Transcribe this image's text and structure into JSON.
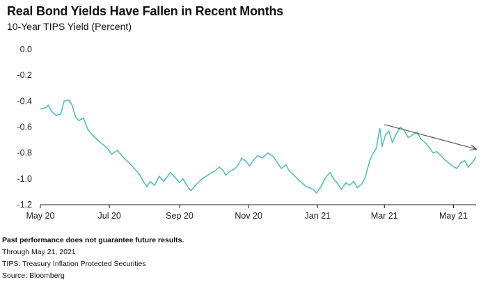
{
  "header": {
    "title": "Real Bond Yields Have Fallen in Recent Months",
    "subtitle": "10-Year TIPS Yield (Percent)"
  },
  "footnotes": {
    "disclaimer": "Past performance does not guarantee future results.",
    "through": "Through May 21, 2021",
    "tips": "TIPS: Treasury Inflation Protected Securities",
    "source": "Source: Bloomberg"
  },
  "colors": {
    "line": "#4fc4b0",
    "axis": "#222222",
    "arrow": "#555555"
  },
  "chart_data": {
    "type": "line",
    "title": "Real Bond Yields Have Fallen in Recent Months",
    "subtitle": "10-Year TIPS Yield (Percent)",
    "xlabel": "",
    "ylabel": "",
    "ylim": [
      -1.2,
      0.0
    ],
    "yticks": [
      "0.0",
      "-0.2",
      "-0.4",
      "-0.6",
      "-0.8",
      "-1.0",
      "-1.2"
    ],
    "xlim": [
      "2020-05-01",
      "2021-05-21"
    ],
    "xticks": [
      {
        "label": "May 20",
        "date": "2020-05-01"
      },
      {
        "label": "Jul 20",
        "date": "2020-07-01"
      },
      {
        "label": "Sep 20",
        "date": "2020-09-01"
      },
      {
        "label": "Nov 20",
        "date": "2020-11-01"
      },
      {
        "label": "Jan 21",
        "date": "2021-01-01"
      },
      {
        "label": "Mar 21",
        "date": "2021-03-01"
      },
      {
        "label": "May 21",
        "date": "2021-05-01"
      }
    ],
    "grid": false,
    "legend": "none",
    "series": [
      {
        "points": [
          [
            "2020-05-01",
            -0.46
          ],
          [
            "2020-05-06",
            -0.45
          ],
          [
            "2020-05-08",
            -0.43
          ],
          [
            "2020-05-11",
            -0.48
          ],
          [
            "2020-05-15",
            -0.51
          ],
          [
            "2020-05-19",
            -0.5
          ],
          [
            "2020-05-22",
            -0.4
          ],
          [
            "2020-05-26",
            -0.39
          ],
          [
            "2020-05-29",
            -0.43
          ],
          [
            "2020-06-01",
            -0.52
          ],
          [
            "2020-06-04",
            -0.55
          ],
          [
            "2020-06-08",
            -0.53
          ],
          [
            "2020-06-12",
            -0.62
          ],
          [
            "2020-06-17",
            -0.67
          ],
          [
            "2020-06-23",
            -0.72
          ],
          [
            "2020-06-29",
            -0.76
          ],
          [
            "2020-07-03",
            -0.81
          ],
          [
            "2020-07-08",
            -0.78
          ],
          [
            "2020-07-14",
            -0.84
          ],
          [
            "2020-07-20",
            -0.89
          ],
          [
            "2020-07-27",
            -0.96
          ],
          [
            "2020-07-31",
            -1.02
          ],
          [
            "2020-08-03",
            -1.06
          ],
          [
            "2020-08-06",
            -1.02
          ],
          [
            "2020-08-10",
            -1.05
          ],
          [
            "2020-08-14",
            -0.98
          ],
          [
            "2020-08-18",
            -1.02
          ],
          [
            "2020-08-24",
            -0.95
          ],
          [
            "2020-08-28",
            -0.99
          ],
          [
            "2020-09-01",
            -1.03
          ],
          [
            "2020-09-04",
            -1.0
          ],
          [
            "2020-09-08",
            -1.06
          ],
          [
            "2020-09-11",
            -1.09
          ],
          [
            "2020-09-15",
            -1.05
          ],
          [
            "2020-09-21",
            -1.0
          ],
          [
            "2020-09-28",
            -0.96
          ],
          [
            "2020-10-02",
            -0.94
          ],
          [
            "2020-10-06",
            -0.91
          ],
          [
            "2020-10-09",
            -0.93
          ],
          [
            "2020-10-12",
            -0.97
          ],
          [
            "2020-10-16",
            -0.94
          ],
          [
            "2020-10-20",
            -0.92
          ],
          [
            "2020-10-23",
            -0.89
          ],
          [
            "2020-10-26",
            -0.84
          ],
          [
            "2020-10-29",
            -0.86
          ],
          [
            "2020-11-02",
            -0.9
          ],
          [
            "2020-11-05",
            -0.86
          ],
          [
            "2020-11-09",
            -0.82
          ],
          [
            "2020-11-13",
            -0.84
          ],
          [
            "2020-11-18",
            -0.8
          ],
          [
            "2020-11-23",
            -0.83
          ],
          [
            "2020-11-30",
            -0.92
          ],
          [
            "2020-12-04",
            -0.89
          ],
          [
            "2020-12-07",
            -0.94
          ],
          [
            "2020-12-11",
            -0.97
          ],
          [
            "2020-12-14",
            -1.0
          ],
          [
            "2020-12-18",
            -1.03
          ],
          [
            "2020-12-22",
            -1.06
          ],
          [
            "2020-12-28",
            -1.08
          ],
          [
            "2020-12-31",
            -1.11
          ],
          [
            "2021-01-04",
            -1.06
          ],
          [
            "2021-01-08",
            -0.99
          ],
          [
            "2021-01-12",
            -0.95
          ],
          [
            "2021-01-15",
            -1.0
          ],
          [
            "2021-01-19",
            -1.04
          ],
          [
            "2021-01-22",
            -1.08
          ],
          [
            "2021-01-26",
            -1.03
          ],
          [
            "2021-01-29",
            -1.05
          ],
          [
            "2021-02-02",
            -1.02
          ],
          [
            "2021-02-05",
            -1.07
          ],
          [
            "2021-02-09",
            -1.04
          ],
          [
            "2021-02-12",
            -0.99
          ],
          [
            "2021-02-16",
            -0.86
          ],
          [
            "2021-02-18",
            -0.82
          ],
          [
            "2021-02-22",
            -0.76
          ],
          [
            "2021-02-24",
            -0.65
          ],
          [
            "2021-02-25",
            -0.61
          ],
          [
            "2021-02-27",
            -0.75
          ],
          [
            "2021-03-02",
            -0.66
          ],
          [
            "2021-03-05",
            -0.63
          ],
          [
            "2021-03-08",
            -0.72
          ],
          [
            "2021-03-11",
            -0.66
          ],
          [
            "2021-03-15",
            -0.6
          ],
          [
            "2021-03-18",
            -0.62
          ],
          [
            "2021-03-22",
            -0.68
          ],
          [
            "2021-03-26",
            -0.66
          ],
          [
            "2021-03-30",
            -0.64
          ],
          [
            "2021-04-02",
            -0.69
          ],
          [
            "2021-04-06",
            -0.72
          ],
          [
            "2021-04-09",
            -0.75
          ],
          [
            "2021-04-13",
            -0.8
          ],
          [
            "2021-04-16",
            -0.79
          ],
          [
            "2021-04-20",
            -0.82
          ],
          [
            "2021-04-23",
            -0.85
          ],
          [
            "2021-04-27",
            -0.88
          ],
          [
            "2021-04-30",
            -0.9
          ],
          [
            "2021-05-04",
            -0.92
          ],
          [
            "2021-05-07",
            -0.88
          ],
          [
            "2021-05-11",
            -0.86
          ],
          [
            "2021-05-14",
            -0.91
          ],
          [
            "2021-05-18",
            -0.87
          ],
          [
            "2021-05-21",
            -0.83
          ]
        ]
      }
    ],
    "annotations": [
      {
        "type": "arrow",
        "from": [
          "2021-03-01",
          -0.58
        ],
        "to": [
          "2021-05-21",
          -0.77
        ]
      }
    ]
  }
}
